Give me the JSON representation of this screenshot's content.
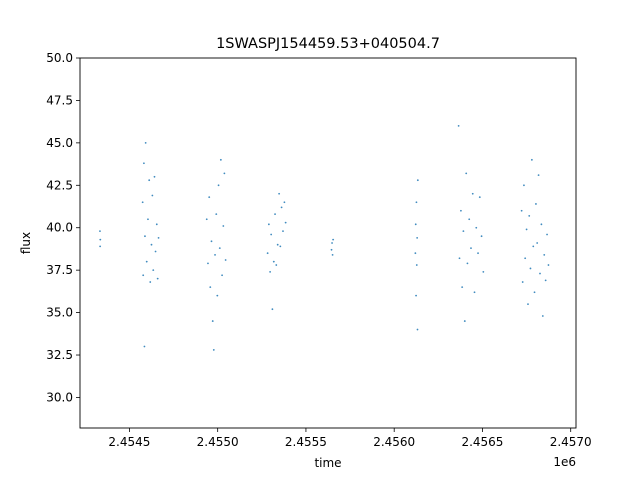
{
  "chart_data": {
    "type": "scatter",
    "title": "1SWASPJ154459.53+040504.7",
    "xlabel": "time",
    "ylabel": "flux",
    "x_offset_label": "1e6",
    "xlim": [
      2454220,
      2457030
    ],
    "ylim": [
      28.2,
      50.0
    ],
    "x_ticks": [
      {
        "value": 2454500,
        "label": "2.4545"
      },
      {
        "value": 2455000,
        "label": "2.4550"
      },
      {
        "value": 2455500,
        "label": "2.4555"
      },
      {
        "value": 2456000,
        "label": "2.4560"
      },
      {
        "value": 2456500,
        "label": "2.4565"
      },
      {
        "value": 2457000,
        "label": "2.4570"
      }
    ],
    "y_ticks": [
      {
        "value": 30.0,
        "label": "30.0"
      },
      {
        "value": 32.5,
        "label": "32.5"
      },
      {
        "value": 35.0,
        "label": "35.0"
      },
      {
        "value": 37.5,
        "label": "37.5"
      },
      {
        "value": 40.0,
        "label": "40.0"
      },
      {
        "value": 42.5,
        "label": "42.5"
      },
      {
        "value": 45.0,
        "label": "45.0"
      },
      {
        "value": 47.5,
        "label": "47.5"
      },
      {
        "value": 50.0,
        "label": "50.0"
      }
    ],
    "grid": false,
    "marker_color": "#1f77b4",
    "series": [
      {
        "values": [
          {
            "x": 2454333,
            "y": 39.8
          },
          {
            "x": 2454334,
            "y": 38.9
          },
          {
            "x": 2454335,
            "y": 39.3
          },
          {
            "x": 2454575,
            "y": 41.5
          },
          {
            "x": 2454578,
            "y": 37.2
          },
          {
            "x": 2454582,
            "y": 43.8
          },
          {
            "x": 2454585,
            "y": 33.0
          },
          {
            "x": 2454588,
            "y": 39.5
          },
          {
            "x": 2454592,
            "y": 45.0
          },
          {
            "x": 2454598,
            "y": 38.0
          },
          {
            "x": 2454605,
            "y": 40.5
          },
          {
            "x": 2454612,
            "y": 42.8
          },
          {
            "x": 2454618,
            "y": 36.8
          },
          {
            "x": 2454625,
            "y": 39.0
          },
          {
            "x": 2454630,
            "y": 41.9
          },
          {
            "x": 2454635,
            "y": 37.5
          },
          {
            "x": 2454642,
            "y": 43.0
          },
          {
            "x": 2454648,
            "y": 38.6
          },
          {
            "x": 2454655,
            "y": 40.2
          },
          {
            "x": 2454660,
            "y": 37.0
          },
          {
            "x": 2454665,
            "y": 39.4
          },
          {
            "x": 2454938,
            "y": 40.5
          },
          {
            "x": 2454945,
            "y": 37.9
          },
          {
            "x": 2454952,
            "y": 41.8
          },
          {
            "x": 2454958,
            "y": 36.5
          },
          {
            "x": 2454965,
            "y": 39.2
          },
          {
            "x": 2454972,
            "y": 34.5
          },
          {
            "x": 2454978,
            "y": 32.8
          },
          {
            "x": 2454985,
            "y": 38.4
          },
          {
            "x": 2454992,
            "y": 40.8
          },
          {
            "x": 2454998,
            "y": 36.0
          },
          {
            "x": 2455005,
            "y": 42.5
          },
          {
            "x": 2455012,
            "y": 38.8
          },
          {
            "x": 2455018,
            "y": 44.0
          },
          {
            "x": 2455025,
            "y": 37.2
          },
          {
            "x": 2455032,
            "y": 40.1
          },
          {
            "x": 2455038,
            "y": 43.2
          },
          {
            "x": 2455045,
            "y": 38.1
          },
          {
            "x": 2455283,
            "y": 38.5
          },
          {
            "x": 2455290,
            "y": 40.2
          },
          {
            "x": 2455297,
            "y": 37.4
          },
          {
            "x": 2455303,
            "y": 39.6
          },
          {
            "x": 2455310,
            "y": 35.2
          },
          {
            "x": 2455318,
            "y": 38.0
          },
          {
            "x": 2455325,
            "y": 40.8
          },
          {
            "x": 2455332,
            "y": 37.8
          },
          {
            "x": 2455340,
            "y": 39.0
          },
          {
            "x": 2455348,
            "y": 42.0
          },
          {
            "x": 2455355,
            "y": 38.9
          },
          {
            "x": 2455362,
            "y": 41.2
          },
          {
            "x": 2455370,
            "y": 39.8
          },
          {
            "x": 2455378,
            "y": 41.5
          },
          {
            "x": 2455385,
            "y": 40.3
          },
          {
            "x": 2455645,
            "y": 38.7
          },
          {
            "x": 2455648,
            "y": 39.1
          },
          {
            "x": 2455651,
            "y": 38.4
          },
          {
            "x": 2455654,
            "y": 39.3
          },
          {
            "x": 2456120,
            "y": 38.5
          },
          {
            "x": 2456122,
            "y": 40.2
          },
          {
            "x": 2456124,
            "y": 36.0
          },
          {
            "x": 2456126,
            "y": 41.5
          },
          {
            "x": 2456128,
            "y": 37.8
          },
          {
            "x": 2456130,
            "y": 39.4
          },
          {
            "x": 2456132,
            "y": 34.0
          },
          {
            "x": 2456134,
            "y": 42.8
          },
          {
            "x": 2456365,
            "y": 46.0
          },
          {
            "x": 2456370,
            "y": 38.2
          },
          {
            "x": 2456378,
            "y": 41.0
          },
          {
            "x": 2456385,
            "y": 36.5
          },
          {
            "x": 2456392,
            "y": 39.8
          },
          {
            "x": 2456400,
            "y": 34.5
          },
          {
            "x": 2456408,
            "y": 43.2
          },
          {
            "x": 2456415,
            "y": 37.9
          },
          {
            "x": 2456425,
            "y": 40.5
          },
          {
            "x": 2456435,
            "y": 38.8
          },
          {
            "x": 2456445,
            "y": 42.0
          },
          {
            "x": 2456455,
            "y": 36.2
          },
          {
            "x": 2456465,
            "y": 40.0
          },
          {
            "x": 2456475,
            "y": 38.5
          },
          {
            "x": 2456485,
            "y": 41.8
          },
          {
            "x": 2456495,
            "y": 39.5
          },
          {
            "x": 2456505,
            "y": 37.4
          },
          {
            "x": 2456722,
            "y": 41.0
          },
          {
            "x": 2456728,
            "y": 36.8
          },
          {
            "x": 2456735,
            "y": 42.5
          },
          {
            "x": 2456742,
            "y": 38.2
          },
          {
            "x": 2456750,
            "y": 39.9
          },
          {
            "x": 2456758,
            "y": 35.5
          },
          {
            "x": 2456765,
            "y": 40.7
          },
          {
            "x": 2456772,
            "y": 37.6
          },
          {
            "x": 2456780,
            "y": 44.0
          },
          {
            "x": 2456788,
            "y": 38.9
          },
          {
            "x": 2456795,
            "y": 36.2
          },
          {
            "x": 2456803,
            "y": 41.4
          },
          {
            "x": 2456810,
            "y": 39.1
          },
          {
            "x": 2456818,
            "y": 43.1
          },
          {
            "x": 2456826,
            "y": 37.3
          },
          {
            "x": 2456834,
            "y": 40.2
          },
          {
            "x": 2456842,
            "y": 34.8
          },
          {
            "x": 2456850,
            "y": 38.4
          },
          {
            "x": 2456858,
            "y": 36.9
          },
          {
            "x": 2456866,
            "y": 39.6
          },
          {
            "x": 2456874,
            "y": 37.8
          }
        ]
      }
    ]
  }
}
